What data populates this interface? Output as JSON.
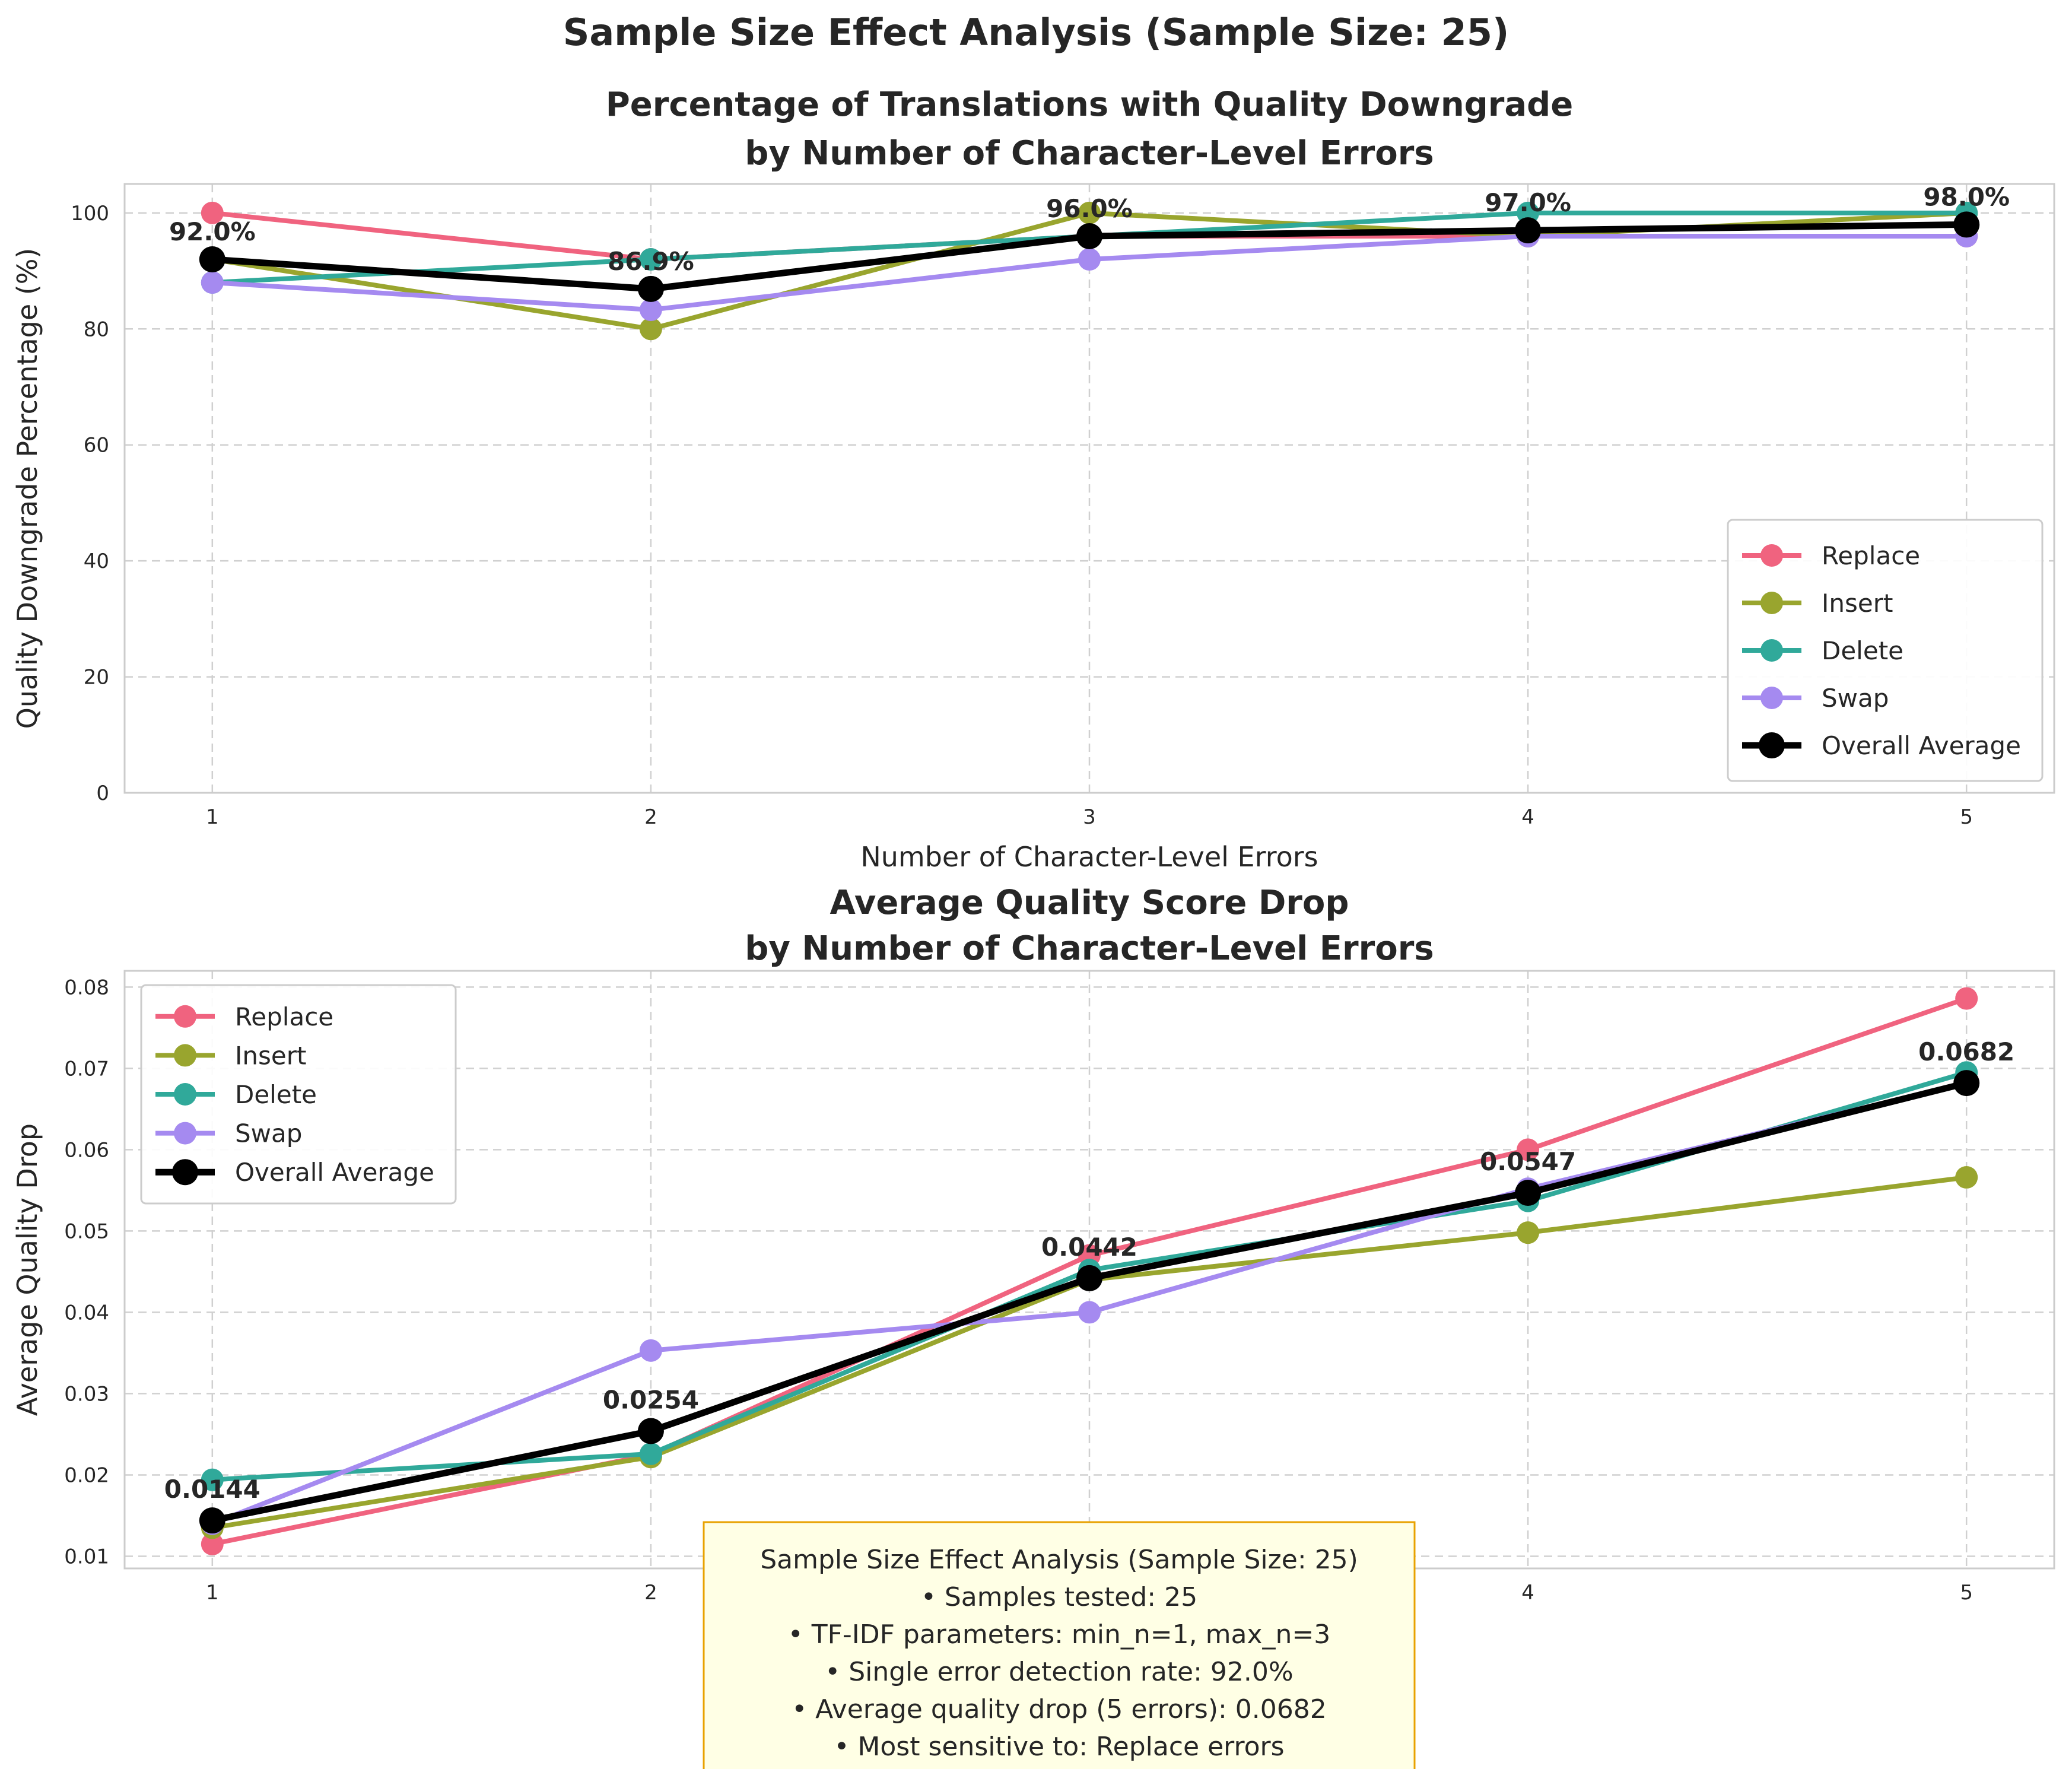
{
  "figure_title": "Sample Size Effect Analysis (Sample Size: 25)",
  "colors": {
    "Replace": "#f0637f",
    "Insert": "#99a52e",
    "Delete": "#30a99a",
    "Swap": "#a58af0",
    "Overall Average": "#000000"
  },
  "chart_data": [
    {
      "type": "line",
      "title": "Percentage of Translations with Quality Downgrade\nby Number of Character-Level Errors",
      "xlabel": "Number of Character-Level Errors",
      "ylabel": "Quality Downgrade Percentage (%)",
      "x": [
        1,
        2,
        3,
        4,
        5
      ],
      "xlim": [
        0.8,
        5.2
      ],
      "ylim": [
        0,
        105
      ],
      "yticks": [
        0,
        20,
        40,
        60,
        80,
        100
      ],
      "ytick_labels": [
        "0",
        "20",
        "40",
        "60",
        "80",
        "100"
      ],
      "grid": true,
      "legend_position": "lower-right",
      "series": [
        {
          "name": "Replace",
          "values": [
            100,
            92,
            96,
            96,
            96
          ]
        },
        {
          "name": "Insert",
          "values": [
            92,
            80,
            100,
            96,
            100
          ]
        },
        {
          "name": "Delete",
          "values": [
            88,
            92,
            96,
            100,
            100
          ]
        },
        {
          "name": "Swap",
          "values": [
            88,
            83.3,
            92,
            96,
            96
          ]
        },
        {
          "name": "Overall Average",
          "values": [
            92.0,
            86.9,
            96.0,
            97.0,
            98.0
          ]
        }
      ],
      "annotations": [
        "92.0%",
        "86.9%",
        "96.0%",
        "97.0%",
        "98.0%"
      ]
    },
    {
      "type": "line",
      "title": "Average Quality Score Drop\nby Number of Character-Level Errors",
      "xlabel": "Number of Character-Level Errors",
      "ylabel": "Average Quality Drop",
      "x": [
        1,
        2,
        3,
        4,
        5
      ],
      "xlim": [
        0.8,
        5.2
      ],
      "ylim": [
        0.0085,
        0.082
      ],
      "yticks": [
        0.01,
        0.02,
        0.03,
        0.04,
        0.05,
        0.06,
        0.07,
        0.08
      ],
      "ytick_labels": [
        "0.01",
        "0.02",
        "0.03",
        "0.04",
        "0.05",
        "0.06",
        "0.07",
        "0.08"
      ],
      "grid": true,
      "legend_position": "upper-left",
      "series": [
        {
          "name": "Replace",
          "values": [
            0.0115,
            0.0225,
            0.047,
            0.06,
            0.0786
          ]
        },
        {
          "name": "Insert",
          "values": [
            0.0135,
            0.0222,
            0.044,
            0.0498,
            0.0566
          ]
        },
        {
          "name": "Delete",
          "values": [
            0.0194,
            0.0226,
            0.0452,
            0.0537,
            0.0695
          ]
        },
        {
          "name": "Swap",
          "values": [
            0.014,
            0.0353,
            0.04,
            0.0552,
            0.0682
          ]
        },
        {
          "name": "Overall Average",
          "values": [
            0.0144,
            0.0254,
            0.0442,
            0.0547,
            0.0682
          ]
        }
      ],
      "annotations": [
        "0.0144",
        "0.0254",
        "0.0442",
        "0.0547",
        "0.0682"
      ]
    }
  ],
  "summary_box": {
    "lines": [
      "Sample Size Effect Analysis (Sample Size: 25)",
      "• Samples tested: 25",
      "• TF-IDF parameters: min_n=1, max_n=3",
      "• Single error detection rate: 92.0%",
      "• Average quality drop (5 errors): 0.0682",
      "• Most sensitive to: Replace errors"
    ]
  }
}
